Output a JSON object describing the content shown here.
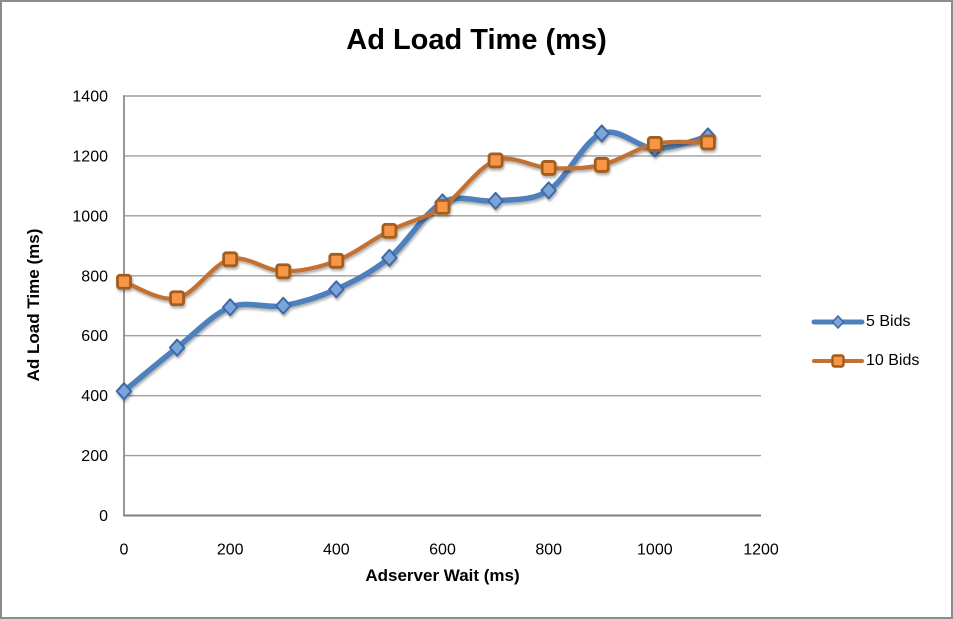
{
  "chart_data": {
    "type": "line",
    "title": "Ad Load Time (ms)",
    "xlabel": "Adserver Wait (ms)",
    "ylabel": "Ad Load Time (ms)",
    "x": [
      0,
      100,
      200,
      300,
      400,
      500,
      600,
      700,
      800,
      900,
      1000,
      1100
    ],
    "series": [
      {
        "name": "5 Bids",
        "marker": "diamond",
        "line_color": "#4E80BC",
        "marker_fill": "#7BA4DB",
        "marker_stroke": "#3E6BA5",
        "values": [
          415,
          560,
          695,
          700,
          755,
          860,
          1045,
          1050,
          1085,
          1275,
          1225,
          1265
        ]
      },
      {
        "name": "10 Bids",
        "marker": "square",
        "line_color": "#C27133",
        "marker_fill": "#F79646",
        "marker_stroke": "#A35D1B",
        "values": [
          780,
          725,
          855,
          815,
          850,
          950,
          1030,
          1185,
          1160,
          1170,
          1240,
          1245
        ]
      }
    ],
    "x_ticks": [
      0,
      200,
      400,
      600,
      800,
      1000,
      1200
    ],
    "y_ticks": [
      0,
      200,
      400,
      600,
      800,
      1000,
      1200,
      1400
    ],
    "xlim": [
      0,
      1200
    ],
    "ylim": [
      0,
      1400
    ],
    "grid": true,
    "smooth_lines": true,
    "legend_position": "right",
    "colors": {
      "gridline": "#9E9E9E",
      "axis": "#7F7F7F",
      "text": "#000000",
      "background": "#FFFFFF",
      "frame_border": "#8C8C8C"
    }
  }
}
